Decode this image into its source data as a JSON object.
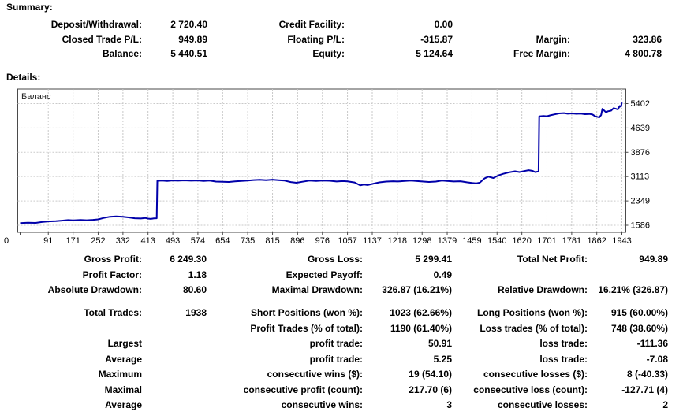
{
  "summary": {
    "heading": "Summary:",
    "rows": [
      [
        "Deposit/Withdrawal:",
        "2 720.40",
        "Credit Facility:",
        "0.00",
        "",
        ""
      ],
      [
        "Closed Trade P/L:",
        "949.89",
        "Floating P/L:",
        "-315.87",
        "Margin:",
        "323.86"
      ],
      [
        "Balance:",
        "5 440.51",
        "Equity:",
        "5 124.64",
        "Free Margin:",
        "4 800.78"
      ]
    ]
  },
  "details": {
    "heading": "Details:",
    "groups": [
      [
        [
          "Gross Profit:",
          "6 249.30",
          "Gross Loss:",
          "5 299.41",
          "Total Net Profit:",
          "949.89"
        ],
        [
          "Profit Factor:",
          "1.18",
          "Expected Payoff:",
          "0.49",
          "",
          ""
        ],
        [
          "Absolute Drawdown:",
          "80.60",
          "Maximal Drawdown:",
          "326.87 (16.21%)",
          "Relative Drawdown:",
          "16.21% (326.87)"
        ]
      ],
      [
        [
          "Total Trades:",
          "1938",
          "Short Positions (won %):",
          "1023 (62.66%)",
          "Long Positions (won %):",
          "915 (60.00%)"
        ],
        [
          "",
          "",
          "Profit Trades (% of total):",
          "1190 (61.40%)",
          "Loss trades (% of total):",
          "748 (38.60%)"
        ],
        [
          "Largest",
          "",
          "profit trade:",
          "50.91",
          "loss trade:",
          "-111.36"
        ],
        [
          "Average",
          "",
          "profit trade:",
          "5.25",
          "loss trade:",
          "-7.08"
        ]
      ],
      [
        [
          "Maximum",
          "",
          "consecutive wins ($):",
          "19 (54.10)",
          "consecutive losses ($):",
          "8 (-40.33)"
        ],
        [
          "Maximal",
          "",
          "consecutive profit (count):",
          "217.70 (6)",
          "consecutive loss (count):",
          "-127.71 (4)"
        ],
        [
          "Average",
          "",
          "consecutive wins:",
          "3",
          "consecutive losses:",
          "2"
        ]
      ]
    ]
  },
  "chart_data": {
    "type": "line",
    "title": "Баланс",
    "legend": [
      "Баланс"
    ],
    "xlabel": "",
    "ylabel": "",
    "grid": true,
    "xlim": [
      0,
      1943
    ],
    "ylim": [
      1586,
      5402
    ],
    "x_ticks": [
      0,
      91,
      171,
      252,
      332,
      413,
      493,
      574,
      654,
      735,
      815,
      896,
      976,
      1057,
      1137,
      1218,
      1298,
      1379,
      1459,
      1540,
      1620,
      1701,
      1781,
      1862,
      1943
    ],
    "y_ticks": [
      1586,
      2349,
      3113,
      3876,
      4639,
      5402
    ],
    "line_color": "#0000aa",
    "grid_color": "#c9c9c9",
    "border_color": "#4a4a4a",
    "points": [
      [
        0,
        1655
      ],
      [
        25,
        1668
      ],
      [
        50,
        1660
      ],
      [
        70,
        1688
      ],
      [
        91,
        1706
      ],
      [
        115,
        1718
      ],
      [
        135,
        1731
      ],
      [
        155,
        1748
      ],
      [
        171,
        1742
      ],
      [
        195,
        1753
      ],
      [
        215,
        1745
      ],
      [
        235,
        1757
      ],
      [
        252,
        1772
      ],
      [
        270,
        1816
      ],
      [
        290,
        1852
      ],
      [
        310,
        1863
      ],
      [
        332,
        1853
      ],
      [
        350,
        1833
      ],
      [
        370,
        1806
      ],
      [
        390,
        1798
      ],
      [
        405,
        1812
      ],
      [
        413,
        1796
      ],
      [
        422,
        1785
      ],
      [
        432,
        1800
      ],
      [
        441,
        1806
      ],
      [
        443,
        2978
      ],
      [
        458,
        2988
      ],
      [
        475,
        2976
      ],
      [
        492,
        2991
      ],
      [
        510,
        2984
      ],
      [
        530,
        2995
      ],
      [
        552,
        2984
      ],
      [
        574,
        2992
      ],
      [
        592,
        2976
      ],
      [
        612,
        2987
      ],
      [
        632,
        2958
      ],
      [
        654,
        2951
      ],
      [
        674,
        2944
      ],
      [
        694,
        2962
      ],
      [
        714,
        2977
      ],
      [
        735,
        2987
      ],
      [
        754,
        3003
      ],
      [
        774,
        3013
      ],
      [
        794,
        3001
      ],
      [
        815,
        3017
      ],
      [
        834,
        3002
      ],
      [
        854,
        2986
      ],
      [
        874,
        2941
      ],
      [
        892,
        2919
      ],
      [
        912,
        2953
      ],
      [
        934,
        2987
      ],
      [
        956,
        2977
      ],
      [
        976,
        2989
      ],
      [
        1000,
        2981
      ],
      [
        1022,
        2959
      ],
      [
        1042,
        2971
      ],
      [
        1057,
        2963
      ],
      [
        1080,
        2929
      ],
      [
        1098,
        2839
      ],
      [
        1110,
        2863
      ],
      [
        1122,
        2849
      ],
      [
        1137,
        2883
      ],
      [
        1160,
        2933
      ],
      [
        1182,
        2957
      ],
      [
        1205,
        2967
      ],
      [
        1218,
        2959
      ],
      [
        1242,
        2973
      ],
      [
        1262,
        2987
      ],
      [
        1282,
        2971
      ],
      [
        1298,
        2959
      ],
      [
        1320,
        2945
      ],
      [
        1342,
        2957
      ],
      [
        1362,
        2987
      ],
      [
        1379,
        2975
      ],
      [
        1400,
        2959
      ],
      [
        1422,
        2967
      ],
      [
        1442,
        2935
      ],
      [
        1459,
        2913
      ],
      [
        1472,
        2899
      ],
      [
        1484,
        2923
      ],
      [
        1500,
        3059
      ],
      [
        1512,
        3109
      ],
      [
        1528,
        3069
      ],
      [
        1545,
        3153
      ],
      [
        1560,
        3199
      ],
      [
        1578,
        3243
      ],
      [
        1598,
        3279
      ],
      [
        1612,
        3253
      ],
      [
        1628,
        3285
      ],
      [
        1642,
        3313
      ],
      [
        1655,
        3291
      ],
      [
        1663,
        3253
      ],
      [
        1674,
        3271
      ],
      [
        1676,
        5002
      ],
      [
        1690,
        5012
      ],
      [
        1701,
        5004
      ],
      [
        1712,
        5033
      ],
      [
        1726,
        5063
      ],
      [
        1740,
        5093
      ],
      [
        1756,
        5103
      ],
      [
        1768,
        5083
      ],
      [
        1781,
        5093
      ],
      [
        1796,
        5081
      ],
      [
        1810,
        5089
      ],
      [
        1824,
        5069
      ],
      [
        1838,
        5077
      ],
      [
        1848,
        5059
      ],
      [
        1856,
        5009
      ],
      [
        1862,
        4989
      ],
      [
        1870,
        4967
      ],
      [
        1876,
        5043
      ],
      [
        1880,
        5239
      ],
      [
        1886,
        5179
      ],
      [
        1892,
        5129
      ],
      [
        1898,
        5159
      ],
      [
        1908,
        5179
      ],
      [
        1916,
        5257
      ],
      [
        1924,
        5237
      ],
      [
        1930,
        5219
      ],
      [
        1936,
        5327
      ],
      [
        1940,
        5301
      ],
      [
        1943,
        5433
      ]
    ]
  }
}
